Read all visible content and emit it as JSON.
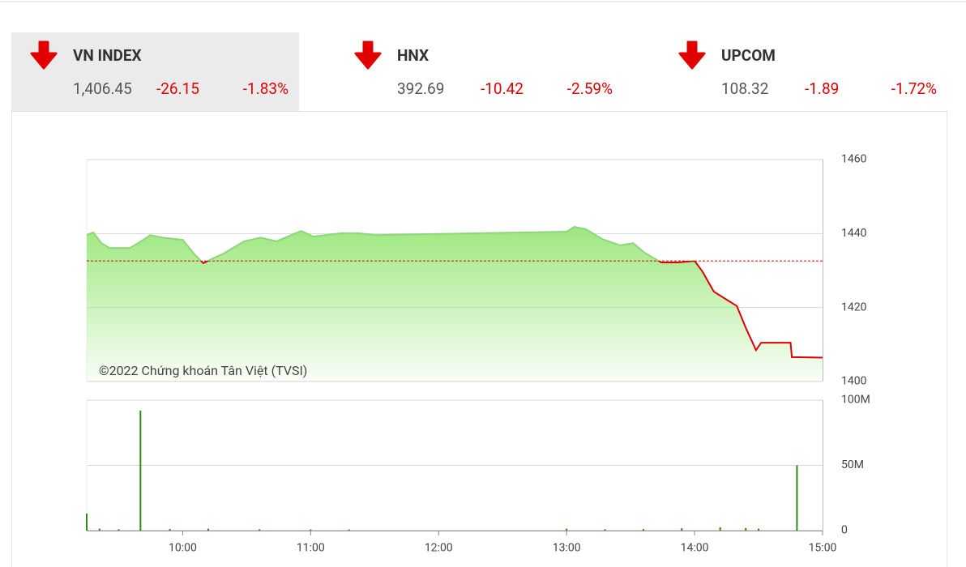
{
  "indices": [
    {
      "name": "VN INDEX",
      "value": "1,406.45",
      "change": "-26.15",
      "percent": "-1.83%"
    },
    {
      "name": "HNX",
      "value": "392.69",
      "change": "-10.42",
      "percent": "-2.59%"
    },
    {
      "name": "UPCOM",
      "value": "108.32",
      "change": "-1.89",
      "percent": "-1.72%"
    }
  ],
  "chart_data": [
    {
      "type": "area",
      "watermark": "©2022 Chứng khoán Tân Việt (TVSI)",
      "x": [
        9.25,
        9.301,
        9.365,
        9.428,
        9.588,
        9.651,
        9.747,
        9.842,
        10.0,
        10.097,
        10.161,
        10.225,
        10.32,
        10.479,
        10.607,
        10.734,
        10.925,
        11.021,
        11.116,
        11.244,
        11.371,
        11.5,
        13.0,
        13.06,
        13.15,
        13.28,
        13.42,
        13.52,
        13.61,
        13.74,
        13.87,
        14.0,
        14.06,
        14.15,
        14.27,
        14.33,
        14.4,
        14.48,
        14.52,
        14.75,
        14.76,
        15.0
      ],
      "values": [
        1439.6,
        1440.3,
        1437.4,
        1436.1,
        1436.1,
        1437.4,
        1439.6,
        1438.9,
        1438.3,
        1434.2,
        1432.0,
        1433.1,
        1434.6,
        1437.9,
        1438.9,
        1437.9,
        1440.7,
        1439.2,
        1439.6,
        1440.1,
        1440.1,
        1439.6,
        1440.5,
        1441.8,
        1441.2,
        1438.5,
        1436.8,
        1437.4,
        1434.8,
        1432.2,
        1432.2,
        1432.6,
        1429.8,
        1424.3,
        1421.7,
        1420.4,
        1414.5,
        1408.5,
        1410.5,
        1410.5,
        1406.6,
        1406.45
      ],
      "reference": 1432.6,
      "up_color": "#8fd67a",
      "down_color": "#e00000",
      "fill_color": "#9de87f",
      "xlim": [
        9.25,
        15
      ],
      "ylim": [
        1400,
        1460
      ],
      "yticks": [
        1400,
        1420,
        1440,
        1460
      ],
      "grid": true
    },
    {
      "type": "bar",
      "x": [
        9.25,
        9.35,
        9.5,
        9.67,
        9.9,
        10.2,
        10.6,
        11.0,
        11.3,
        13.0,
        13.3,
        13.6,
        13.9,
        14.2,
        14.4,
        14.5,
        14.8
      ],
      "values": [
        13000000,
        1500000,
        1000000,
        92000000,
        1200000,
        1500000,
        1000000,
        900000,
        800000,
        1500000,
        1000000,
        1200000,
        1800000,
        2500000,
        2000000,
        1500000,
        50000000
      ],
      "color": "#2e8b12",
      "xlim": [
        9.25,
        15
      ],
      "ylim": [
        0,
        100000000
      ],
      "yticks": [
        0,
        {
          "value": 50000000,
          "label": "50M"
        },
        {
          "value": 100000000,
          "label": "100M"
        }
      ],
      "xticks": [
        {
          "value": 10,
          "label": "10:00"
        },
        {
          "value": 11,
          "label": "11:00"
        },
        {
          "value": 12,
          "label": "12:00"
        },
        {
          "value": 13,
          "label": "13:00"
        },
        {
          "value": 14,
          "label": "14:00"
        },
        {
          "value": 15,
          "label": "15:00"
        }
      ],
      "grid": true
    }
  ]
}
